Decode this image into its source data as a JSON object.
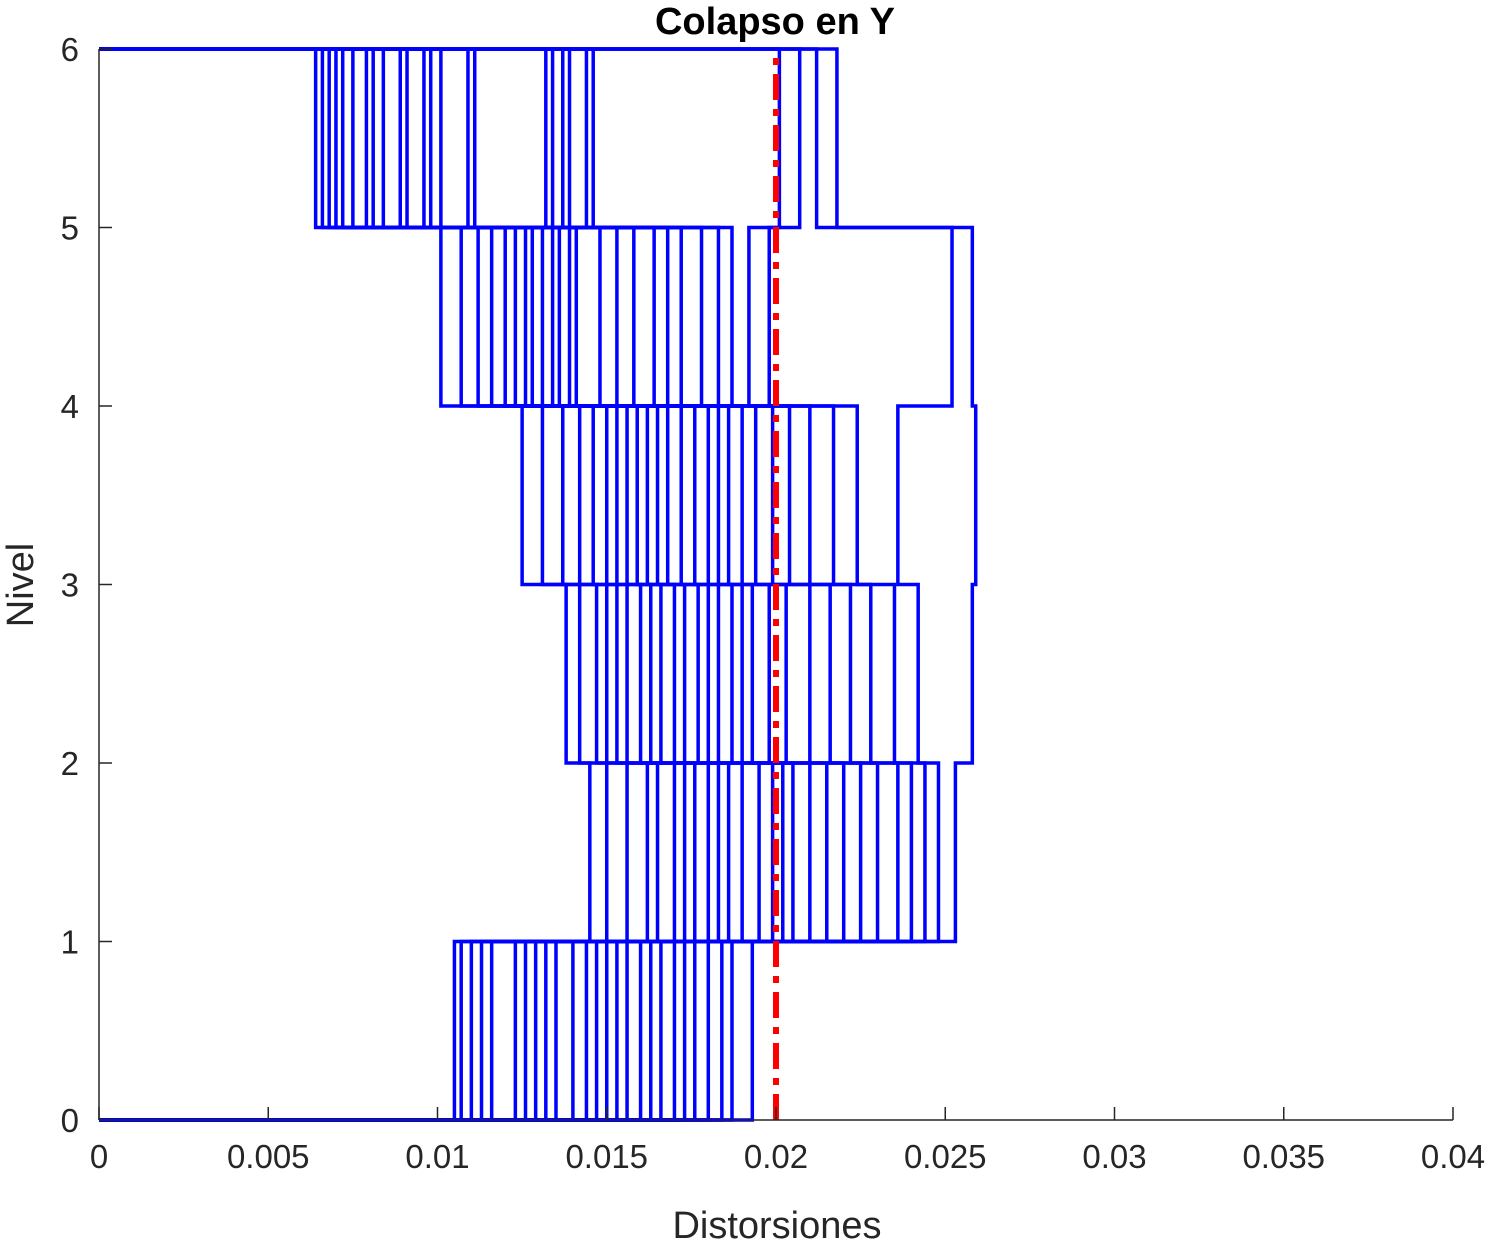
{
  "chart_data": {
    "type": "line",
    "title": "Colapso en Y",
    "xlabel": "Distorsiones",
    "ylabel": "Nivel",
    "xlim": [
      0,
      0.04
    ],
    "ylim": [
      0,
      6
    ],
    "xticks": [
      "0",
      "0.005",
      "0.01",
      "0.015",
      "0.02",
      "0.025",
      "0.03",
      "0.035",
      "0.04"
    ],
    "xtick_values": [
      0,
      0.005,
      0.01,
      0.015,
      0.02,
      0.025,
      0.03,
      0.035,
      0.04
    ],
    "yticks": [
      "0",
      "1",
      "2",
      "3",
      "4",
      "5",
      "6"
    ],
    "ytick_values": [
      0,
      1,
      2,
      3,
      4,
      5,
      6
    ],
    "grid": false,
    "legend": "none",
    "series_color": "#0000ff",
    "reference_line": {
      "x": 0.02,
      "style": "dash-dot",
      "color": "#ff0000"
    },
    "x_range_note_values": {
      "level_0_to_1": [
        0.0105,
        0.0193
      ],
      "level_1_to_2": [
        0.0145,
        0.0253
      ],
      "level_2_to_3": [
        0.0138,
        0.0258
      ],
      "level_3_to_4": [
        0.0125,
        0.0259
      ],
      "level_4_to_5": [
        0.0101,
        0.0258
      ],
      "level_5_to_6": [
        0.0064,
        0.0218
      ]
    },
    "series": [
      {
        "values": [
          0.0105,
          0.0145,
          0.0138,
          0.0125,
          0.0101,
          0.0064
        ]
      },
      {
        "values": [
          0.0107,
          0.015,
          0.0142,
          0.0131,
          0.0107,
          0.0066
        ]
      },
      {
        "values": [
          0.011,
          0.0156,
          0.0147,
          0.0137,
          0.0112,
          0.0068
        ]
      },
      {
        "values": [
          0.0113,
          0.0162,
          0.015,
          0.0142,
          0.0116,
          0.007
        ]
      },
      {
        "values": [
          0.0116,
          0.0165,
          0.0153,
          0.0146,
          0.012,
          0.0072
        ]
      },
      {
        "values": [
          0.0123,
          0.017,
          0.0156,
          0.015,
          0.0123,
          0.0075
        ]
      },
      {
        "values": [
          0.0126,
          0.0173,
          0.016,
          0.0153,
          0.0126,
          0.0079
        ]
      },
      {
        "values": [
          0.0129,
          0.0176,
          0.0163,
          0.0156,
          0.0128,
          0.0081
        ]
      },
      {
        "values": [
          0.0132,
          0.018,
          0.0166,
          0.0159,
          0.0131,
          0.0084
        ]
      },
      {
        "values": [
          0.0135,
          0.0183,
          0.017,
          0.0162,
          0.0134,
          0.0089
        ]
      },
      {
        "values": [
          0.014,
          0.0186,
          0.0173,
          0.0165,
          0.0136,
          0.0091
        ]
      },
      {
        "values": [
          0.0144,
          0.019,
          0.0177,
          0.0168,
          0.0139,
          0.0096
        ]
      },
      {
        "values": [
          0.0147,
          0.0195,
          0.018,
          0.0172,
          0.0141,
          0.0098
        ]
      },
      {
        "values": [
          0.015,
          0.0199,
          0.0183,
          0.0176,
          0.0148,
          0.0101
        ]
      },
      {
        "values": [
          0.0153,
          0.0202,
          0.0187,
          0.018,
          0.0153,
          0.0109
        ]
      },
      {
        "values": [
          0.0156,
          0.0205,
          0.019,
          0.0183,
          0.0158,
          0.0111
        ]
      },
      {
        "values": [
          0.016,
          0.021,
          0.0193,
          0.0186,
          0.0164,
          0.0132
        ]
      },
      {
        "values": [
          0.0163,
          0.0215,
          0.0198,
          0.019,
          0.0168,
          0.0134
        ]
      },
      {
        "values": [
          0.0166,
          0.022,
          0.0203,
          0.0194,
          0.0172,
          0.0137
        ]
      },
      {
        "values": [
          0.017,
          0.0225,
          0.021,
          0.0199,
          0.0178,
          0.0139
        ]
      },
      {
        "values": [
          0.0173,
          0.023,
          0.0216,
          0.0204,
          0.0183,
          0.0144
        ]
      },
      {
        "values": [
          0.0176,
          0.0236,
          0.0222,
          0.021,
          0.0187,
          0.0146
        ]
      },
      {
        "values": [
          0.018,
          0.024,
          0.0228,
          0.0217,
          0.0192,
          0.0201
        ]
      },
      {
        "values": [
          0.0184,
          0.0244,
          0.0235,
          0.0224,
          0.0198,
          0.0207
        ]
      },
      {
        "values": [
          0.0187,
          0.0248,
          0.0242,
          0.0236,
          0.0252,
          0.0212
        ]
      },
      {
        "values": [
          0.0193,
          0.0253,
          0.0258,
          0.0259,
          0.0258,
          0.0218
        ]
      }
    ]
  }
}
